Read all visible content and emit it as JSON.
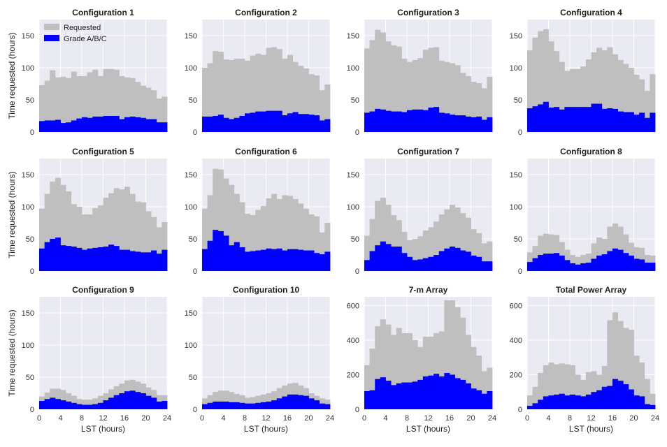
{
  "chart_data": {
    "type": "bar",
    "layout": "grid 3x4",
    "bins": [
      0,
      1,
      2,
      3,
      4,
      5,
      6,
      7,
      8,
      9,
      10,
      11,
      12,
      13,
      14,
      15,
      16,
      17,
      18,
      19,
      20,
      21,
      22,
      23
    ],
    "xticks": [
      0,
      4,
      8,
      12,
      16,
      20,
      24
    ],
    "xlabel": "LST  (hours)",
    "ylabel": "Time requested (hours)",
    "legend": {
      "placement": "top-left",
      "entries": [
        "Requested",
        "Grade A/B/C"
      ]
    },
    "colors": {
      "requested": "#bfbfbf",
      "grade": "#0000ff",
      "background": "#eaeaf2",
      "grid": "#ffffff"
    },
    "grid": true,
    "panels": [
      {
        "title": "Configuration 1",
        "ylim": [
          0,
          175
        ],
        "yticks": [
          0,
          50,
          100,
          150
        ],
        "series": [
          {
            "name": "Requested",
            "values": [
              73,
              80,
              96,
              85,
              86,
              84,
              94,
              87,
              87,
              93,
              97,
              87,
              98,
              98,
              97,
              87,
              85,
              84,
              78,
              72,
              69,
              65,
              52,
              55
            ]
          },
          {
            "name": "Grade A/B/C",
            "values": [
              17,
              18,
              18,
              19,
              14,
              15,
              18,
              21,
              23,
              22,
              24,
              24,
              25,
              25,
              25,
              20,
              23,
              24,
              23,
              22,
              20,
              20,
              15,
              15
            ]
          }
        ]
      },
      {
        "title": "Configuration 2",
        "ylim": [
          0,
          175
        ],
        "yticks": [
          0,
          50,
          100,
          150
        ],
        "series": [
          {
            "name": "Requested",
            "values": [
              100,
              107,
              126,
              125,
              113,
              112,
              114,
              114,
              111,
              119,
              122,
              120,
              131,
              132,
              129,
              114,
              120,
              109,
              103,
              99,
              90,
              88,
              65,
              74
            ]
          },
          {
            "name": "Grade A/B/C",
            "values": [
              24,
              24,
              25,
              27,
              22,
              20,
              22,
              25,
              29,
              30,
              32,
              32,
              33,
              33,
              33,
              26,
              29,
              31,
              28,
              28,
              27,
              26,
              18,
              20
            ]
          }
        ]
      },
      {
        "title": "Configuration 3",
        "ylim": [
          0,
          175
        ],
        "yticks": [
          0,
          50,
          100,
          150
        ],
        "series": [
          {
            "name": "Requested",
            "values": [
              130,
              143,
              159,
              155,
              141,
              135,
              133,
              114,
              109,
              112,
              115,
              128,
              131,
              132,
              111,
              109,
              107,
              104,
              92,
              87,
              78,
              76,
              68,
              86
            ]
          },
          {
            "name": "Grade A/B/C",
            "values": [
              30,
              32,
              36,
              35,
              33,
              32,
              32,
              31,
              34,
              35,
              35,
              34,
              38,
              39,
              30,
              29,
              27,
              26,
              26,
              24,
              23,
              24,
              19,
              23
            ]
          }
        ]
      },
      {
        "title": "Configuration 4",
        "ylim": [
          0,
          175
        ],
        "yticks": [
          0,
          50,
          100,
          150
        ],
        "series": [
          {
            "name": "Requested",
            "values": [
              127,
              147,
              157,
              160,
              141,
              126,
              109,
              95,
              98,
              98,
              102,
              113,
              124,
              131,
              127,
              132,
              121,
              112,
              106,
              100,
              89,
              82,
              64,
              90
            ]
          },
          {
            "name": "Grade A/B/C",
            "values": [
              37,
              40,
              43,
              47,
              38,
              39,
              35,
              39,
              39,
              39,
              39,
              39,
              44,
              44,
              36,
              37,
              36,
              32,
              31,
              31,
              27,
              30,
              22,
              30
            ]
          }
        ]
      },
      {
        "title": "Configuration 5",
        "ylim": [
          0,
          175
        ],
        "yticks": [
          0,
          50,
          100,
          150
        ],
        "series": [
          {
            "name": "Requested",
            "values": [
              97,
              120,
              139,
              145,
              134,
              124,
              104,
              100,
              88,
              88,
              98,
              102,
              114,
              121,
              129,
              127,
              131,
              120,
              108,
              107,
              93,
              84,
              68,
              76
            ]
          },
          {
            "name": "Grade A/B/C",
            "values": [
              35,
              45,
              50,
              52,
              40,
              39,
              38,
              36,
              33,
              35,
              36,
              37,
              38,
              41,
              39,
              33,
              33,
              31,
              30,
              29,
              29,
              32,
              27,
              33
            ]
          }
        ]
      },
      {
        "title": "Configuration 6",
        "ylim": [
          0,
          175
        ],
        "yticks": [
          0,
          50,
          100,
          150
        ],
        "series": [
          {
            "name": "Requested",
            "values": [
              97,
              118,
              159,
              158,
              144,
              134,
              120,
              107,
              89,
              87,
              95,
              101,
              113,
              120,
              112,
              118,
              117,
              112,
              105,
              97,
              88,
              85,
              60,
              75
            ]
          },
          {
            "name": "Grade A/B/C",
            "values": [
              34,
              47,
              64,
              62,
              55,
              40,
              45,
              37,
              30,
              31,
              32,
              33,
              35,
              34,
              35,
              32,
              34,
              34,
              33,
              32,
              32,
              28,
              26,
              30
            ]
          }
        ]
      },
      {
        "title": "Configuration 7",
        "ylim": [
          0,
          175
        ],
        "yticks": [
          0,
          50,
          100,
          150
        ],
        "series": [
          {
            "name": "Requested",
            "values": [
              55,
              81,
              109,
              114,
              103,
              87,
              79,
              61,
              48,
              50,
              54,
              63,
              68,
              77,
              88,
              96,
              103,
              99,
              90,
              83,
              65,
              59,
              43,
              46
            ]
          },
          {
            "name": "Grade A/B/C",
            "values": [
              17,
              31,
              40,
              46,
              42,
              38,
              38,
              28,
              22,
              17,
              18,
              20,
              22,
              25,
              31,
              35,
              38,
              36,
              32,
              30,
              24,
              22,
              15,
              15
            ]
          }
        ]
      },
      {
        "title": "Configuration 8",
        "ylim": [
          0,
          175
        ],
        "yticks": [
          0,
          50,
          100,
          150
        ],
        "series": [
          {
            "name": "Requested",
            "values": [
              29,
              39,
              55,
              58,
              57,
              56,
              45,
              33,
              25,
              22,
              25,
              27,
              43,
              52,
              50,
              69,
              74,
              69,
              57,
              44,
              37,
              36,
              25,
              24
            ]
          },
          {
            "name": "Grade A/B/C",
            "values": [
              14,
              20,
              25,
              27,
              27,
              28,
              24,
              17,
              12,
              10,
              12,
              13,
              19,
              24,
              26,
              31,
              35,
              33,
              28,
              24,
              19,
              18,
              13,
              13
            ]
          }
        ]
      },
      {
        "title": "Configuration 9",
        "ylim": [
          0,
          175
        ],
        "yticks": [
          0,
          50,
          100,
          150
        ],
        "series": [
          {
            "name": "Requested",
            "values": [
              20,
              26,
              32,
              32,
              30,
              25,
              21,
              16,
              15,
              15,
              17,
              21,
              25,
              31,
              36,
              40,
              45,
              46,
              43,
              40,
              34,
              30,
              22,
              22
            ]
          },
          {
            "name": "Grade A/B/C",
            "values": [
              13,
              16,
              18,
              16,
              14,
              12,
              10,
              8,
              7,
              7,
              8,
              10,
              14,
              18,
              22,
              25,
              28,
              29,
              27,
              25,
              21,
              18,
              12,
              13
            ]
          }
        ]
      },
      {
        "title": "Configuration 10",
        "ylim": [
          0,
          175
        ],
        "yticks": [
          0,
          50,
          100,
          150
        ],
        "series": [
          {
            "name": "Requested",
            "values": [
              17,
              22,
              27,
              29,
              29,
              27,
              24,
              22,
              18,
              19,
              21,
              23,
              25,
              28,
              33,
              37,
              40,
              41,
              37,
              33,
              25,
              21,
              17,
              15
            ]
          },
          {
            "name": "Grade A/B/C",
            "values": [
              8,
              10,
              12,
              12,
              12,
              11,
              11,
              10,
              9,
              9,
              10,
              11,
              12,
              14,
              17,
              20,
              23,
              23,
              22,
              21,
              17,
              14,
              9,
              8
            ]
          }
        ]
      },
      {
        "title": "7-m Array",
        "ylim": [
          0,
          650
        ],
        "yticks": [
          0,
          200,
          400,
          600
        ],
        "series": [
          {
            "name": "Requested",
            "values": [
              255,
              350,
              480,
              520,
              490,
              430,
              470,
              440,
              440,
              400,
              360,
              420,
              420,
              440,
              450,
              630,
              630,
              590,
              530,
              430,
              360,
              310,
              220,
              240
            ]
          },
          {
            "name": "Grade A/B/C",
            "values": [
              105,
              110,
              175,
              185,
              165,
              140,
              150,
              155,
              155,
              160,
              170,
              190,
              195,
              205,
              190,
              210,
              200,
              180,
              170,
              150,
              120,
              110,
              90,
              105
            ]
          }
        ]
      },
      {
        "title": "Total Power Array",
        "ylim": [
          0,
          650
        ],
        "yticks": [
          0,
          200,
          400,
          600
        ],
        "series": [
          {
            "name": "Requested",
            "values": [
              80,
              130,
              210,
              255,
              270,
              260,
              265,
              260,
              255,
              200,
              170,
              215,
              220,
              200,
              250,
              515,
              560,
              510,
              470,
              460,
              310,
              270,
              175,
              90
            ]
          },
          {
            "name": "Grade A/B/C",
            "values": [
              20,
              35,
              55,
              75,
              80,
              85,
              90,
              80,
              85,
              80,
              75,
              85,
              100,
              110,
              130,
              135,
              175,
              165,
              145,
              115,
              80,
              75,
              30,
              25
            ]
          }
        ]
      }
    ]
  }
}
